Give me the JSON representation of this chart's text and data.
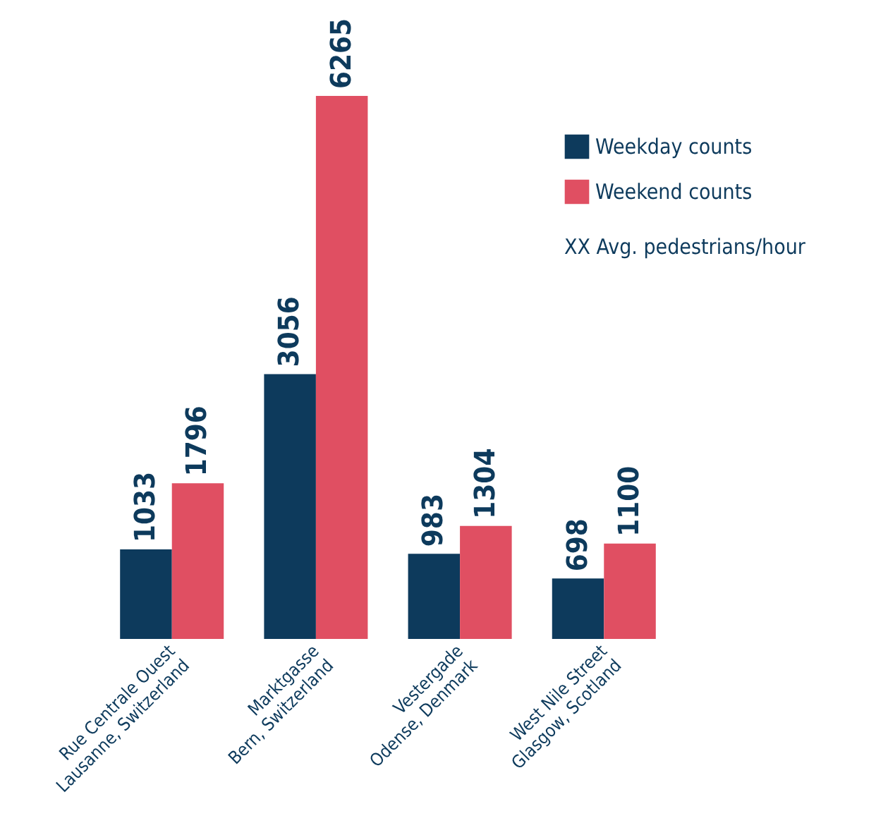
{
  "chart_data": {
    "type": "bar",
    "categories": [
      "Rue Centrale Ouest\nLausanne, Switzerland",
      "Marktgasse\nBern, Switzerland",
      "Vestergade\nOdense, Denmark",
      "West Nile Street\nGlasgow, Scotland"
    ],
    "series": [
      {
        "name": "Weekday counts",
        "color": "#0d3a5c",
        "values": [
          1033,
          3056,
          983,
          698
        ]
      },
      {
        "name": "Weekend counts",
        "color": "#e04f62",
        "values": [
          1796,
          6265,
          1304,
          1100
        ]
      }
    ],
    "data_labels": true,
    "legend": "top right",
    "annotations": [
      "XX Avg. pedestrians/hour"
    ]
  }
}
